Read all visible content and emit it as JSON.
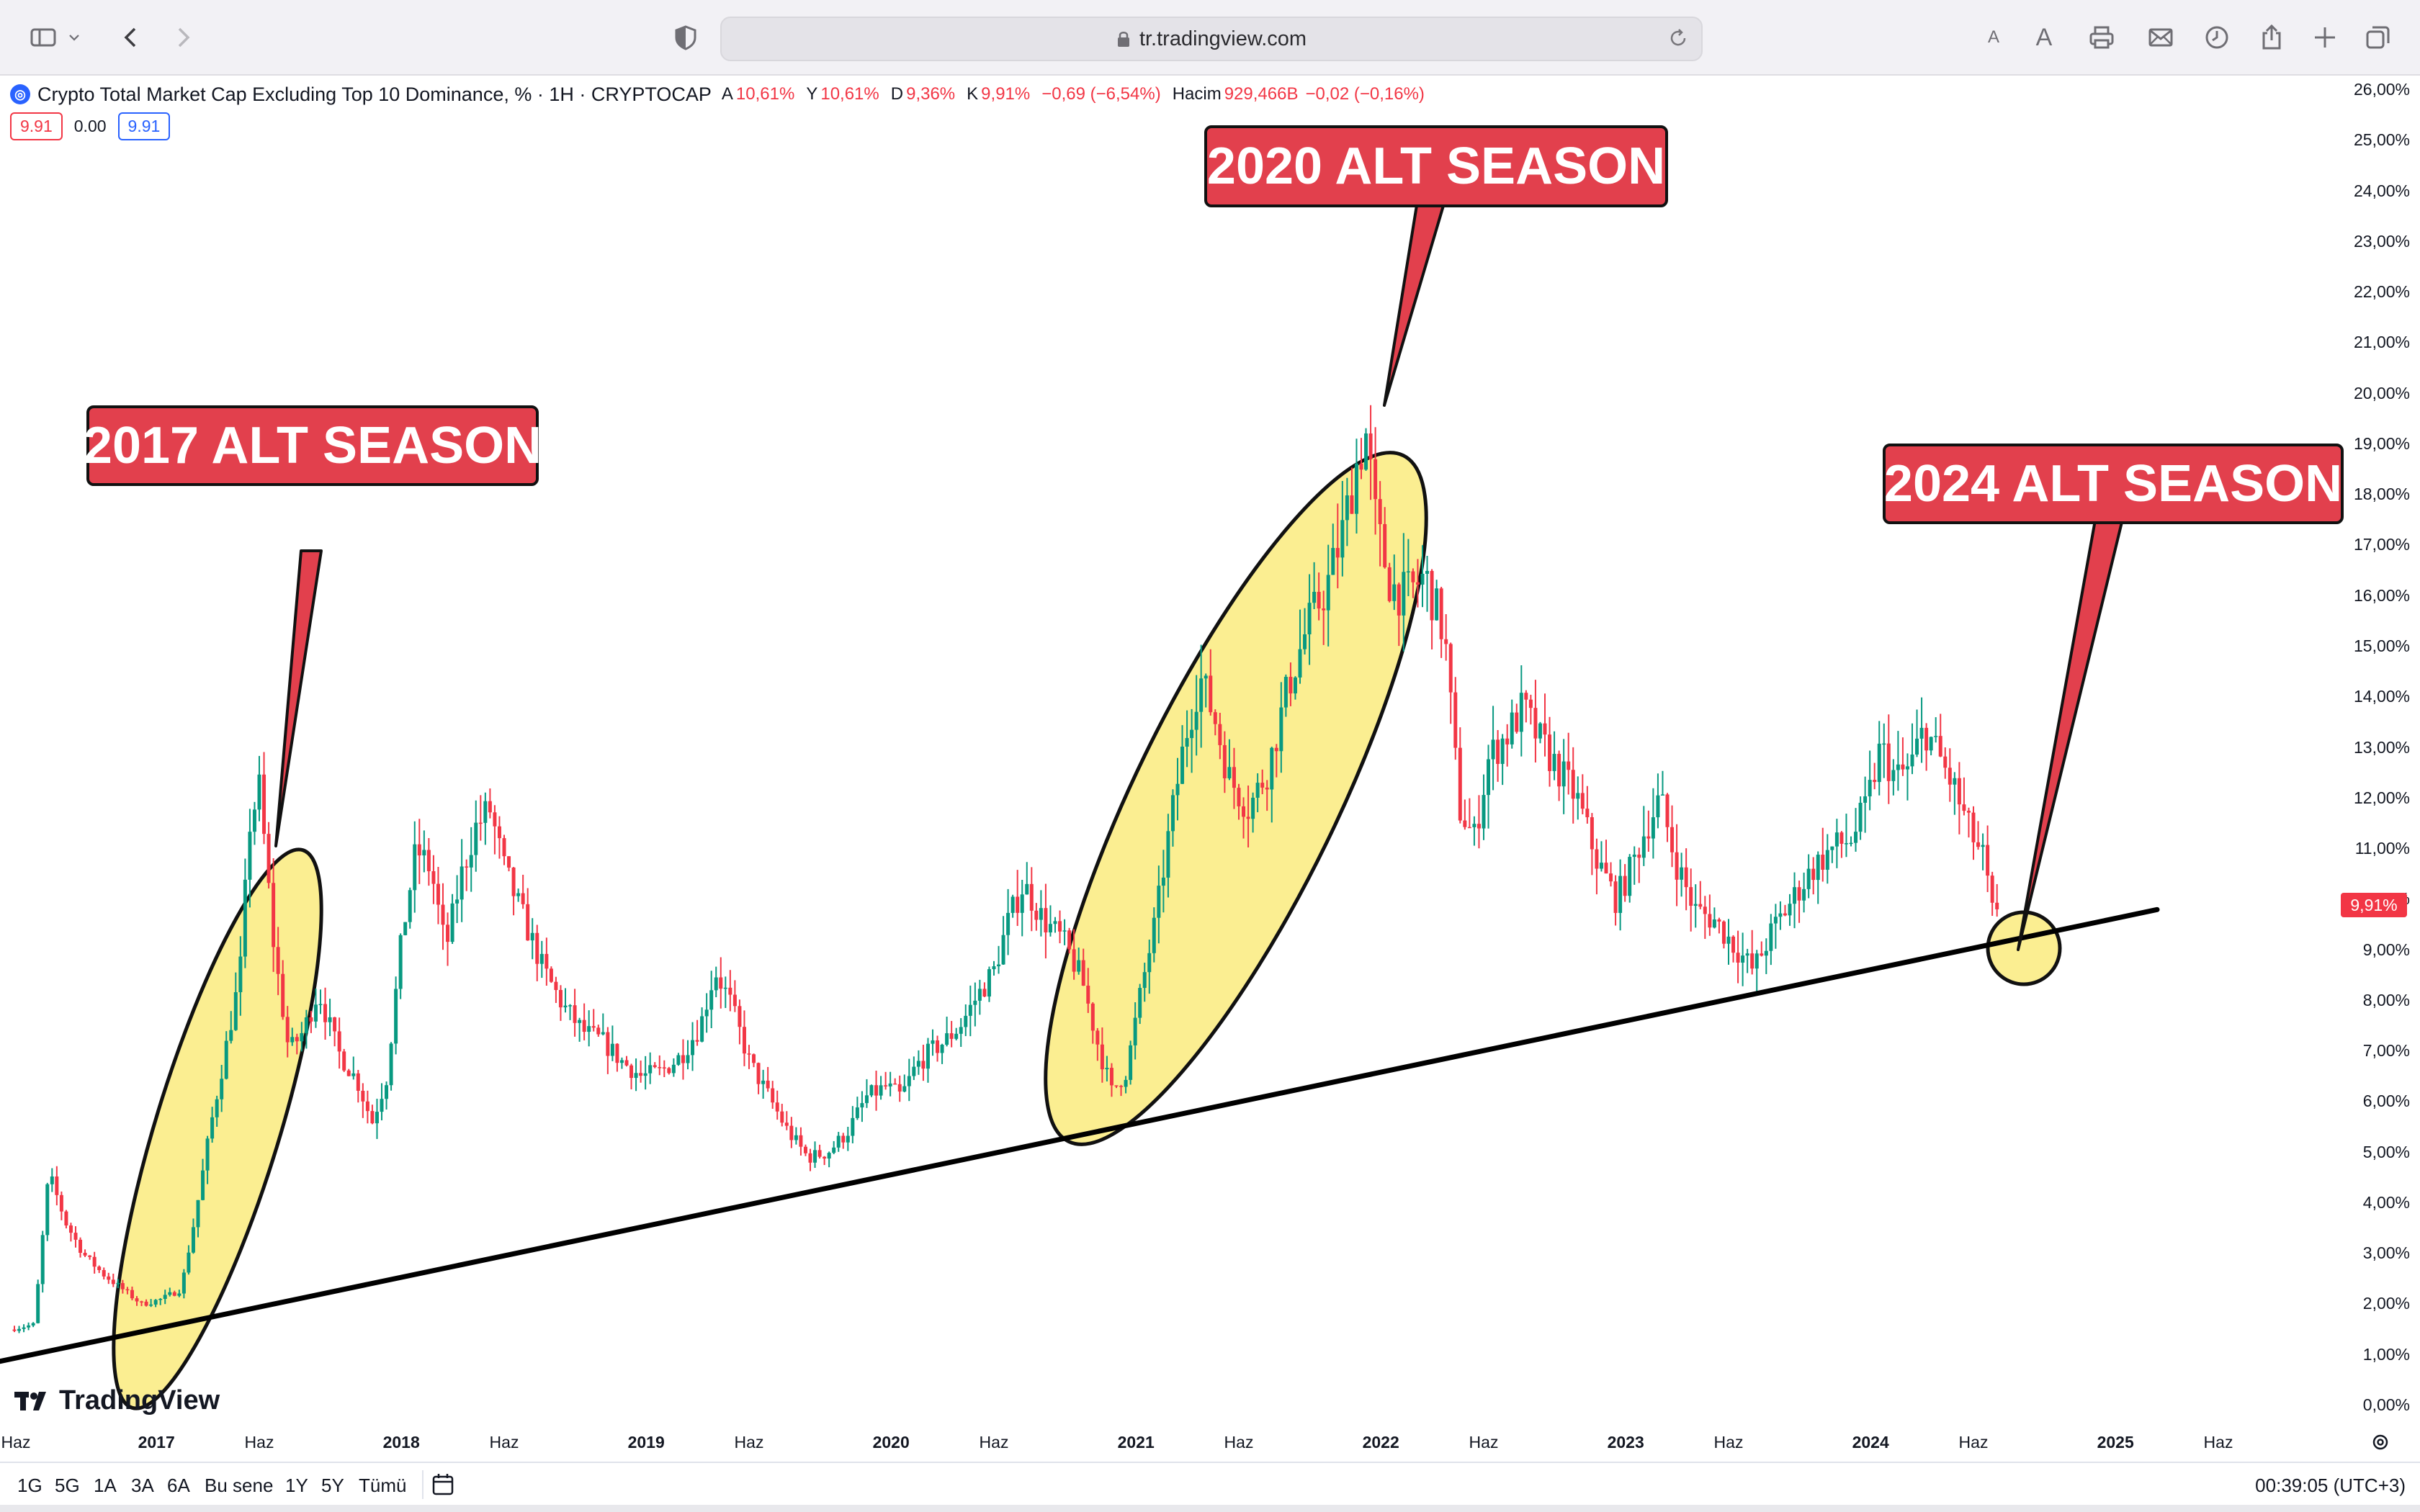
{
  "browser": {
    "url": "tr.tradingview.com",
    "text_size_small": "A",
    "text_size_large": "A"
  },
  "legend": {
    "title": "Crypto Total Market Cap Excluding Top 10 Dominance, % · 1H · CRYPTOCAP",
    "open_label": "A",
    "open_value": "10,61%",
    "high_label": "Y",
    "high_value": "10,61%",
    "low_label": "D",
    "low_value": "9,36%",
    "close_label": "K",
    "close_value": "9,91%",
    "change": "−0,69 (−6,54%)",
    "volume_label": "Hacim",
    "volume_value": "929,466B",
    "volume_change": "−0,02 (−0,16%)",
    "bid": "9.91",
    "spread": "0.00",
    "ask": "9.91"
  },
  "chart_data": {
    "type": "candlestick",
    "y_axis_ticks": [
      "26,00%",
      "25,00%",
      "24,00%",
      "23,00%",
      "22,00%",
      "21,00%",
      "20,00%",
      "19,00%",
      "18,00%",
      "17,00%",
      "16,00%",
      "15,00%",
      "14,00%",
      "13,00%",
      "12,00%",
      "11,00%",
      "10,00%",
      "9,00%",
      "8,00%",
      "7,00%",
      "6,00%",
      "5,00%",
      "4,00%",
      "3,00%",
      "2,00%",
      "1,00%",
      "0,00%"
    ],
    "ylim": [
      0,
      26
    ],
    "x_axis_ticks": [
      {
        "label": "Haz",
        "t": 2016.42,
        "bold": false
      },
      {
        "label": "2017",
        "t": 2017.0,
        "bold": true
      },
      {
        "label": "Haz",
        "t": 2017.42,
        "bold": false
      },
      {
        "label": "2018",
        "t": 2018.0,
        "bold": true
      },
      {
        "label": "Haz",
        "t": 2018.42,
        "bold": false
      },
      {
        "label": "2019",
        "t": 2019.0,
        "bold": true
      },
      {
        "label": "Haz",
        "t": 2019.42,
        "bold": false
      },
      {
        "label": "2020",
        "t": 2020.0,
        "bold": true
      },
      {
        "label": "Haz",
        "t": 2020.42,
        "bold": false
      },
      {
        "label": "2021",
        "t": 2021.0,
        "bold": true
      },
      {
        "label": "Haz",
        "t": 2021.42,
        "bold": false
      },
      {
        "label": "2022",
        "t": 2022.0,
        "bold": true
      },
      {
        "label": "Haz",
        "t": 2022.42,
        "bold": false
      },
      {
        "label": "2023",
        "t": 2023.0,
        "bold": true
      },
      {
        "label": "Haz",
        "t": 2023.42,
        "bold": false
      },
      {
        "label": "2024",
        "t": 2024.0,
        "bold": true
      },
      {
        "label": "Haz",
        "t": 2024.42,
        "bold": false
      },
      {
        "label": "2025",
        "t": 2025.0,
        "bold": true
      },
      {
        "label": "Haz",
        "t": 2025.42,
        "bold": false
      }
    ],
    "xlim": [
      2016.42,
      2025.42
    ],
    "series_path": [
      [
        2016.42,
        1.5
      ],
      [
        2016.52,
        1.6
      ],
      [
        2016.58,
        4.6
      ],
      [
        2016.65,
        3.6
      ],
      [
        2016.72,
        3.0
      ],
      [
        2016.8,
        2.6
      ],
      [
        2016.88,
        2.3
      ],
      [
        2016.96,
        2.0
      ],
      [
        2017.04,
        2.1
      ],
      [
        2017.12,
        2.3
      ],
      [
        2017.18,
        3.8
      ],
      [
        2017.24,
        5.5
      ],
      [
        2017.3,
        7.0
      ],
      [
        2017.36,
        8.5
      ],
      [
        2017.4,
        11.5
      ],
      [
        2017.44,
        12.2
      ],
      [
        2017.5,
        9.0
      ],
      [
        2017.56,
        7.0
      ],
      [
        2017.62,
        7.4
      ],
      [
        2017.68,
        8.2
      ],
      [
        2017.76,
        7.0
      ],
      [
        2017.84,
        6.4
      ],
      [
        2017.9,
        5.6
      ],
      [
        2017.96,
        6.5
      ],
      [
        2018.02,
        9.2
      ],
      [
        2018.08,
        11.0
      ],
      [
        2018.14,
        10.6
      ],
      [
        2018.2,
        9.0
      ],
      [
        2018.26,
        10.4
      ],
      [
        2018.32,
        11.4
      ],
      [
        2018.38,
        11.8
      ],
      [
        2018.44,
        10.6
      ],
      [
        2018.52,
        9.6
      ],
      [
        2018.6,
        8.6
      ],
      [
        2018.68,
        7.9
      ],
      [
        2018.76,
        7.4
      ],
      [
        2018.84,
        7.2
      ],
      [
        2018.92,
        6.8
      ],
      [
        2019.0,
        6.5
      ],
      [
        2019.08,
        6.6
      ],
      [
        2019.16,
        6.9
      ],
      [
        2019.24,
        7.5
      ],
      [
        2019.3,
        8.6
      ],
      [
        2019.36,
        8.0
      ],
      [
        2019.44,
        6.8
      ],
      [
        2019.52,
        6.1
      ],
      [
        2019.6,
        5.4
      ],
      [
        2019.68,
        4.9
      ],
      [
        2019.76,
        5.0
      ],
      [
        2019.84,
        5.4
      ],
      [
        2019.92,
        6.1
      ],
      [
        2020.0,
        6.3
      ],
      [
        2020.06,
        6.1
      ],
      [
        2020.12,
        6.7
      ],
      [
        2020.18,
        7.0
      ],
      [
        2020.24,
        7.2
      ],
      [
        2020.3,
        7.5
      ],
      [
        2020.36,
        8.0
      ],
      [
        2020.44,
        8.6
      ],
      [
        2020.5,
        9.6
      ],
      [
        2020.56,
        10.3
      ],
      [
        2020.64,
        9.6
      ],
      [
        2020.72,
        9.2
      ],
      [
        2020.8,
        8.4
      ],
      [
        2020.86,
        7.2
      ],
      [
        2020.92,
        6.2
      ],
      [
        2020.98,
        6.6
      ],
      [
        2021.04,
        8.2
      ],
      [
        2021.1,
        9.6
      ],
      [
        2021.16,
        11.5
      ],
      [
        2021.22,
        13.2
      ],
      [
        2021.28,
        14.4
      ],
      [
        2021.34,
        13.6
      ],
      [
        2021.4,
        12.4
      ],
      [
        2021.48,
        11.8
      ],
      [
        2021.56,
        12.6
      ],
      [
        2021.64,
        14.2
      ],
      [
        2021.72,
        15.4
      ],
      [
        2021.8,
        16.2
      ],
      [
        2021.86,
        17.2
      ],
      [
        2021.92,
        18.6
      ],
      [
        2021.96,
        19.2
      ],
      [
        2022.0,
        17.4
      ],
      [
        2022.06,
        16.2
      ],
      [
        2022.12,
        16.0
      ],
      [
        2022.2,
        16.4
      ],
      [
        2022.28,
        15.2
      ],
      [
        2022.34,
        11.8
      ],
      [
        2022.4,
        11.2
      ],
      [
        2022.46,
        12.8
      ],
      [
        2022.54,
        13.3
      ],
      [
        2022.6,
        13.8
      ],
      [
        2022.66,
        13.2
      ],
      [
        2022.74,
        12.6
      ],
      [
        2022.82,
        12.0
      ],
      [
        2022.9,
        10.8
      ],
      [
        2022.98,
        10.0
      ],
      [
        2023.04,
        10.6
      ],
      [
        2023.1,
        11.4
      ],
      [
        2023.16,
        12.0
      ],
      [
        2023.22,
        10.8
      ],
      [
        2023.3,
        9.8
      ],
      [
        2023.38,
        9.6
      ],
      [
        2023.46,
        9.1
      ],
      [
        2023.54,
        8.6
      ],
      [
        2023.62,
        9.4
      ],
      [
        2023.7,
        10.0
      ],
      [
        2023.78,
        10.6
      ],
      [
        2023.86,
        11.0
      ],
      [
        2023.94,
        11.2
      ],
      [
        2024.0,
        11.8
      ],
      [
        2024.06,
        13.0
      ],
      [
        2024.12,
        12.4
      ],
      [
        2024.18,
        12.6
      ],
      [
        2024.24,
        13.4
      ],
      [
        2024.3,
        12.8
      ],
      [
        2024.36,
        12.2
      ],
      [
        2024.42,
        11.4
      ],
      [
        2024.48,
        10.8
      ],
      [
        2024.52,
        9.6
      ]
    ],
    "trendline": [
      [
        2016.42,
        0.9
      ],
      [
        2025.17,
        9.8
      ]
    ],
    "last_value": "9,91%"
  },
  "annotations": {
    "callout_2017": "2017 ALT SEASON",
    "callout_2020": "2020 ALT SEASON",
    "callout_2024": "2024 ALT SEASON"
  },
  "brand": "TradingView",
  "bottom_bar": {
    "ranges": [
      "1G",
      "5G",
      "1A",
      "3A",
      "6A",
      "Bu sene",
      "1Y",
      "5Y",
      "Tümü"
    ],
    "clock": "00:39:05 (UTC+3)"
  },
  "colors": {
    "up": "#089981",
    "down": "#f23645",
    "callout": "#e2404d",
    "highlight": "#fbee91"
  }
}
